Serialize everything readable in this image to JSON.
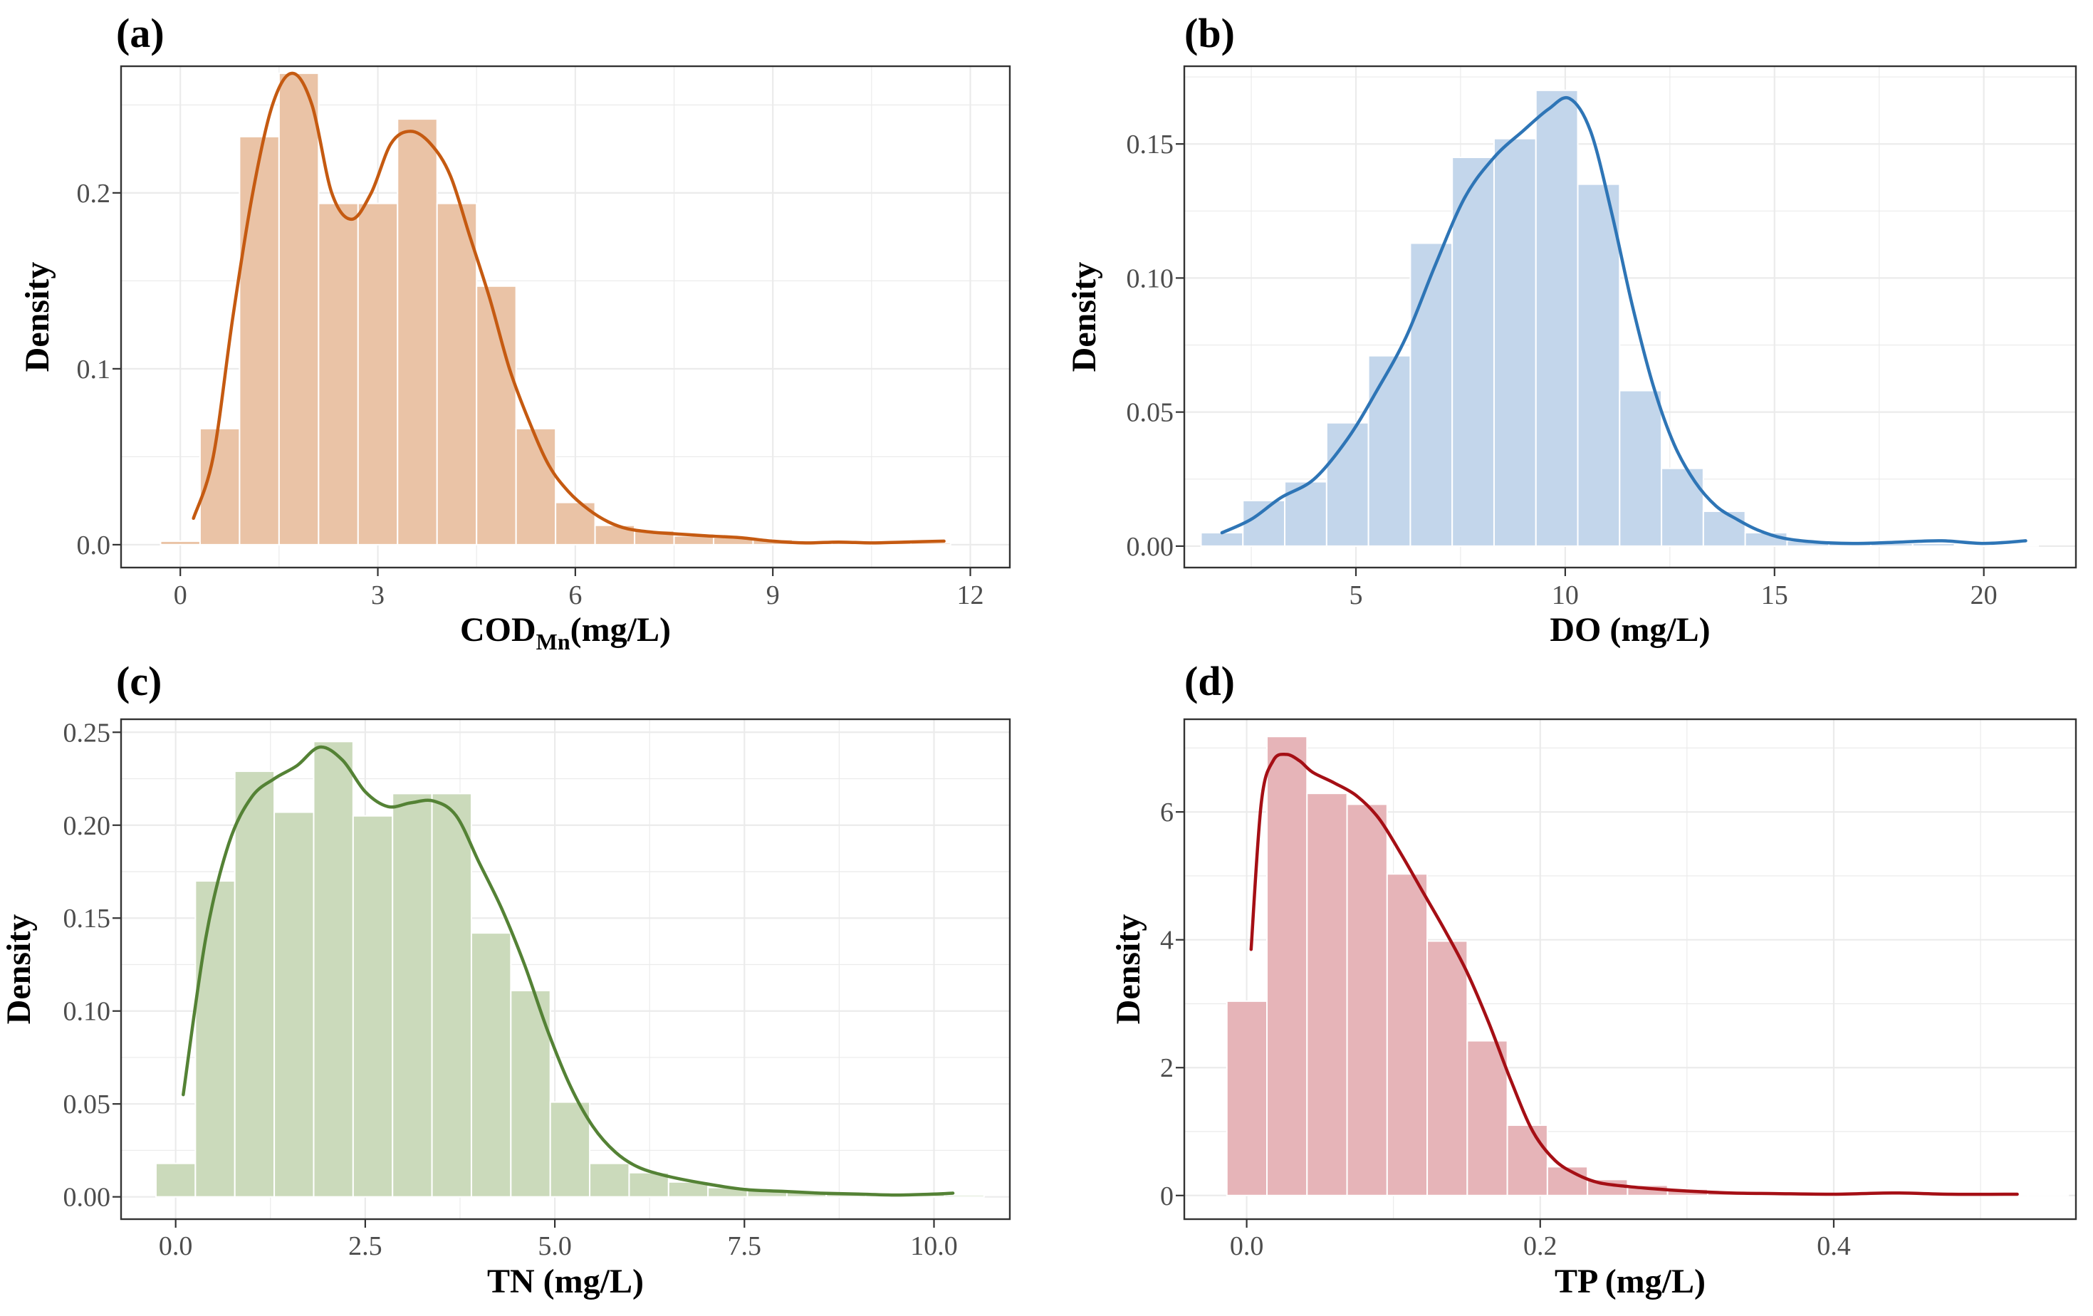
{
  "chart_data": [
    {
      "type": "bar",
      "panel_label": "(a)",
      "title": "",
      "xlabel_main": "COD",
      "xlabel_sub": "Mn",
      "xlabel_rest": "(mg/L)",
      "ylabel": "Density",
      "xlim": [
        -0.9,
        12.6
      ],
      "ylim": [
        -0.013,
        0.272
      ],
      "x_ticks": [
        0,
        3,
        6,
        9,
        12
      ],
      "x_tick_labels": [
        "0",
        "3",
        "6",
        "9",
        "12"
      ],
      "y_ticks": [
        0.0,
        0.1,
        0.2
      ],
      "y_tick_labels": [
        "0.0",
        "0.1",
        "0.2"
      ],
      "grid": true,
      "bar_color": "#eac3a6",
      "line_color": "#c55a11",
      "bins": {
        "start": -0.3,
        "width": 0.6,
        "values": [
          0.002,
          0.066,
          0.232,
          0.268,
          0.194,
          0.194,
          0.242,
          0.194,
          0.147,
          0.066,
          0.024,
          0.011,
          0.008,
          0.005,
          0.004,
          0.003,
          0.002,
          0.001,
          0.001,
          0.001
        ]
      },
      "density_curve": {
        "x": [
          0.2,
          0.5,
          0.8,
          1.1,
          1.4,
          1.7,
          2.0,
          2.3,
          2.6,
          2.9,
          3.2,
          3.5,
          3.8,
          4.1,
          4.4,
          4.7,
          5.0,
          5.3,
          5.6,
          5.9,
          6.2,
          6.5,
          6.8,
          7.2,
          7.6,
          8.0,
          8.5,
          9.0,
          9.5,
          10.0,
          10.5,
          11.0,
          11.6
        ],
        "y": [
          0.015,
          0.05,
          0.13,
          0.2,
          0.25,
          0.268,
          0.25,
          0.2,
          0.185,
          0.2,
          0.228,
          0.235,
          0.228,
          0.21,
          0.175,
          0.14,
          0.1,
          0.07,
          0.045,
          0.03,
          0.02,
          0.013,
          0.009,
          0.007,
          0.006,
          0.005,
          0.004,
          0.002,
          0.001,
          0.0015,
          0.001,
          0.0015,
          0.002
        ]
      }
    },
    {
      "type": "bar",
      "panel_label": "(b)",
      "title": "",
      "xlabel_main": "DO (mg/L)",
      "xlabel_sub": "",
      "xlabel_rest": "",
      "ylabel": "Density",
      "xlim": [
        0.9,
        22.2
      ],
      "ylim": [
        -0.008,
        0.179
      ],
      "x_ticks": [
        5,
        10,
        15,
        20
      ],
      "x_tick_labels": [
        "5",
        "10",
        "15",
        "20"
      ],
      "y_ticks": [
        0.0,
        0.05,
        0.1,
        0.15
      ],
      "y_tick_labels": [
        "0.00",
        "0.05",
        "0.10",
        "0.15"
      ],
      "grid": true,
      "bar_color": "#c3d6eb",
      "line_color": "#2e75b6",
      "bins": {
        "start": 1.3,
        "width": 1.0,
        "values": [
          0.005,
          0.017,
          0.024,
          0.046,
          0.071,
          0.113,
          0.145,
          0.152,
          0.17,
          0.135,
          0.058,
          0.029,
          0.013,
          0.005,
          0.002,
          0.001,
          0.001,
          0.001,
          0.0005,
          0.0005
        ]
      },
      "density_curve": {
        "x": [
          1.8,
          2.5,
          3.2,
          4.0,
          4.8,
          5.5,
          6.2,
          6.9,
          7.6,
          8.3,
          9.0,
          9.6,
          10.1,
          10.6,
          11.1,
          11.6,
          12.1,
          12.6,
          13.1,
          13.6,
          14.1,
          14.6,
          15.2,
          16.0,
          17.0,
          18.0,
          19.0,
          20.0,
          21.0
        ],
        "y": [
          0.005,
          0.01,
          0.018,
          0.025,
          0.04,
          0.058,
          0.078,
          0.105,
          0.13,
          0.145,
          0.155,
          0.163,
          0.167,
          0.155,
          0.125,
          0.09,
          0.06,
          0.038,
          0.024,
          0.015,
          0.01,
          0.006,
          0.003,
          0.0015,
          0.001,
          0.0015,
          0.002,
          0.001,
          0.002
        ]
      }
    },
    {
      "type": "bar",
      "panel_label": "(c)",
      "title": "",
      "xlabel_main": "TN (mg/L)",
      "xlabel_sub": "",
      "xlabel_rest": "",
      "ylabel": "Density",
      "xlim": [
        -0.72,
        11.0
      ],
      "ylim": [
        -0.012,
        0.257
      ],
      "x_ticks": [
        0.0,
        2.5,
        5.0,
        7.5,
        10.0
      ],
      "x_tick_labels": [
        "0.0",
        "2.5",
        "5.0",
        "7.5",
        "10.0"
      ],
      "y_ticks": [
        0.0,
        0.05,
        0.1,
        0.15,
        0.2,
        0.25
      ],
      "y_tick_labels": [
        "0.00",
        "0.05",
        "0.10",
        "0.15",
        "0.20",
        "0.25"
      ],
      "grid": true,
      "bar_color": "#cbdabb",
      "line_color": "#548235",
      "bins": {
        "start": -0.26,
        "width": 0.52,
        "values": [
          0.018,
          0.17,
          0.229,
          0.207,
          0.245,
          0.205,
          0.217,
          0.217,
          0.142,
          0.111,
          0.051,
          0.018,
          0.013,
          0.008,
          0.005,
          0.004,
          0.003,
          0.002,
          0.002,
          0.002,
          0.001
        ]
      },
      "density_curve": {
        "x": [
          0.1,
          0.4,
          0.7,
          1.0,
          1.3,
          1.6,
          1.9,
          2.2,
          2.5,
          2.8,
          3.1,
          3.4,
          3.7,
          4.0,
          4.3,
          4.6,
          4.9,
          5.2,
          5.5,
          5.8,
          6.1,
          6.5,
          7.0,
          7.5,
          8.0,
          8.5,
          9.0,
          9.5,
          10.0,
          10.25
        ],
        "y": [
          0.055,
          0.14,
          0.19,
          0.215,
          0.225,
          0.232,
          0.242,
          0.235,
          0.218,
          0.21,
          0.212,
          0.213,
          0.205,
          0.18,
          0.155,
          0.125,
          0.09,
          0.06,
          0.038,
          0.024,
          0.016,
          0.011,
          0.007,
          0.004,
          0.003,
          0.002,
          0.0015,
          0.001,
          0.0015,
          0.002
        ]
      }
    },
    {
      "type": "bar",
      "panel_label": "(d)",
      "title": "",
      "xlabel_main": "TP (mg/L)",
      "xlabel_sub": "",
      "xlabel_rest": "",
      "ylabel": "Density",
      "xlim": [
        -0.0425,
        0.565
      ],
      "ylim": [
        -0.37,
        7.45
      ],
      "x_ticks": [
        0.0,
        0.2,
        0.4
      ],
      "x_tick_labels": [
        "0.0",
        "0.2",
        "0.4"
      ],
      "y_ticks": [
        0,
        2,
        4,
        6
      ],
      "y_tick_labels": [
        "0",
        "2",
        "4",
        "6"
      ],
      "grid": true,
      "bar_color": "#e6b4b8",
      "line_color": "#a50f15",
      "bins": {
        "start": -0.0135,
        "width": 0.0273,
        "values": [
          3.04,
          7.18,
          6.29,
          6.12,
          5.03,
          3.98,
          2.42,
          1.1,
          0.45,
          0.25,
          0.16,
          0.1,
          0.07,
          0.05,
          0.03,
          0.02,
          0.02,
          0.01,
          0.01,
          0.01,
          0.01
        ]
      },
      "density_curve": {
        "x": [
          0.003,
          0.01,
          0.018,
          0.027,
          0.036,
          0.045,
          0.06,
          0.075,
          0.09,
          0.105,
          0.12,
          0.135,
          0.15,
          0.165,
          0.18,
          0.195,
          0.21,
          0.225,
          0.24,
          0.26,
          0.28,
          0.3,
          0.33,
          0.36,
          0.4,
          0.44,
          0.48,
          0.525
        ],
        "y": [
          3.85,
          6.15,
          6.8,
          6.9,
          6.8,
          6.62,
          6.45,
          6.25,
          5.9,
          5.35,
          4.75,
          4.15,
          3.5,
          2.7,
          1.8,
          1.0,
          0.55,
          0.33,
          0.2,
          0.14,
          0.1,
          0.07,
          0.04,
          0.03,
          0.02,
          0.04,
          0.02,
          0.02
        ]
      }
    }
  ]
}
